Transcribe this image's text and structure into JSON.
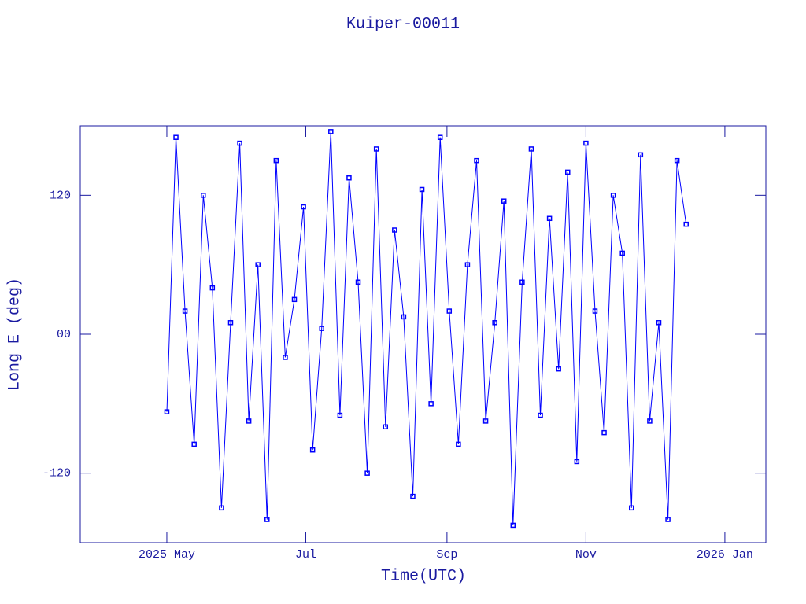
{
  "chart_data": {
    "type": "line",
    "title": "Kuiper-00011",
    "x_label": "Time(UTC)",
    "y_label": "Long E (deg)",
    "xlim": [
      "2025-03-24",
      "2026-01-19"
    ],
    "xticks": [
      {
        "value": "2025-05-01",
        "label": "2025 May"
      },
      {
        "value": "2025-07-01",
        "label": "Jul"
      },
      {
        "value": "2025-09-01",
        "label": "Sep"
      },
      {
        "value": "2025-11-01",
        "label": "Nov"
      },
      {
        "value": "2026-01-01",
        "label": "2026 Jan"
      }
    ],
    "ylim": [
      -180,
      180
    ],
    "yticks": [
      {
        "value": -120,
        "label": "-120"
      },
      {
        "value": 0,
        "label": "00"
      },
      120
    ],
    "axis_color": "#1a1aa0",
    "series": [
      {
        "name": "Kuiper-00011",
        "color": "#0000ff",
        "x": [
          "2025-05-01",
          "2025-05-05",
          "2025-05-09",
          "2025-05-13",
          "2025-05-17",
          "2025-05-21",
          "2025-05-25",
          "2025-05-29",
          "2025-06-02",
          "2025-06-06",
          "2025-06-10",
          "2025-06-14",
          "2025-06-18",
          "2025-06-22",
          "2025-06-26",
          "2025-06-30",
          "2025-07-04",
          "2025-07-08",
          "2025-07-12",
          "2025-07-16",
          "2025-07-20",
          "2025-07-24",
          "2025-07-28",
          "2025-08-01",
          "2025-08-05",
          "2025-08-09",
          "2025-08-13",
          "2025-08-17",
          "2025-08-21",
          "2025-08-25",
          "2025-08-29",
          "2025-09-02",
          "2025-09-06",
          "2025-09-10",
          "2025-09-14",
          "2025-09-18",
          "2025-09-22",
          "2025-09-26",
          "2025-09-30",
          "2025-10-04",
          "2025-10-08",
          "2025-10-12",
          "2025-10-16",
          "2025-10-20",
          "2025-10-24",
          "2025-10-28",
          "2025-11-01",
          "2025-11-05",
          "2025-11-09",
          "2025-11-13",
          "2025-11-17",
          "2025-11-21",
          "2025-11-25",
          "2025-11-29",
          "2025-12-03",
          "2025-12-07",
          "2025-12-11",
          "2025-12-15"
        ],
        "values": [
          -67,
          170,
          20,
          -95,
          120,
          40,
          -150,
          10,
          165,
          -75,
          60,
          -160,
          150,
          -20,
          30,
          110,
          -100,
          5,
          175,
          -70,
          135,
          45,
          -120,
          160,
          -80,
          90,
          15,
          -140,
          125,
          -60,
          170,
          20,
          -95,
          60,
          150,
          -75,
          10,
          115,
          -165,
          45,
          160,
          -70,
          100,
          -30,
          140,
          -110,
          165,
          20,
          -85,
          120,
          70,
          -150,
          155,
          -75,
          10,
          -160,
          150,
          95
        ]
      }
    ]
  }
}
